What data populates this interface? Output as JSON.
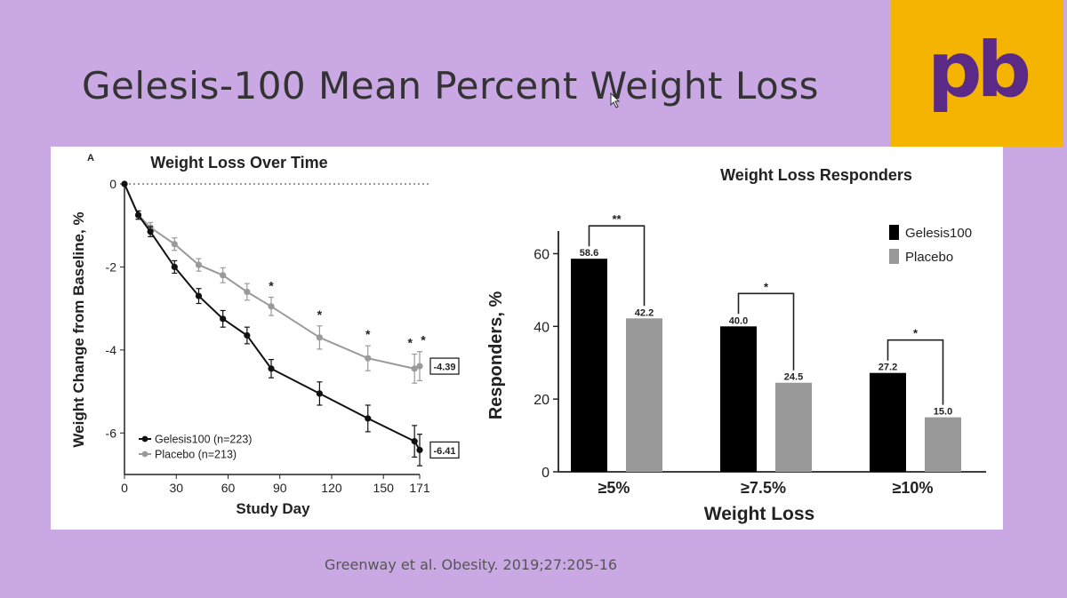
{
  "slide": {
    "title": "Gelesis-100 Mean Percent Weight Loss",
    "citation": "Greenway et al.  Obesity.  2019;27:205-16",
    "logo_text": "pb",
    "logo_bg": "#f5b400",
    "logo_color": "#5b2a86",
    "background": "#c9a8e3"
  },
  "chart_data": [
    {
      "type": "line",
      "panel_label": "A",
      "title": "Weight Loss Over Time",
      "xlabel": "Study Day",
      "ylabel": "Weight Change from Baseline, %",
      "x_ticks": [
        0,
        30,
        60,
        90,
        120,
        150,
        171
      ],
      "y_ticks": [
        0,
        -2,
        -4,
        -6
      ],
      "xlim": [
        0,
        171
      ],
      "ylim": [
        -7,
        0
      ],
      "baseline_dotted": true,
      "series": [
        {
          "name": "Gelesis100",
          "legend": "Gelesis100 (n=223)",
          "color": "#111111",
          "x": [
            0,
            8,
            15,
            29,
            43,
            57,
            71,
            85,
            113,
            141,
            168,
            171
          ],
          "y": [
            0,
            -0.75,
            -1.15,
            -2.0,
            -2.7,
            -3.25,
            -3.65,
            -4.45,
            -5.05,
            -5.65,
            -6.2,
            -6.41
          ],
          "err": [
            0,
            0.1,
            0.12,
            0.15,
            0.18,
            0.2,
            0.2,
            0.22,
            0.28,
            0.32,
            0.38,
            0.38
          ],
          "end_label": "-6.41"
        },
        {
          "name": "Placebo",
          "legend": "Placebo (n=213)",
          "color": "#9a9a9a",
          "x": [
            0,
            8,
            15,
            29,
            43,
            57,
            71,
            85,
            113,
            141,
            168,
            171
          ],
          "y": [
            0,
            -0.75,
            -1.05,
            -1.45,
            -1.95,
            -2.2,
            -2.6,
            -2.95,
            -3.7,
            -4.2,
            -4.45,
            -4.39
          ],
          "err": [
            0,
            0.1,
            0.12,
            0.15,
            0.15,
            0.18,
            0.2,
            0.22,
            0.28,
            0.3,
            0.35,
            0.35
          ],
          "end_label": "-4.39"
        }
      ],
      "significance": [
        {
          "x": 85,
          "label": "*"
        },
        {
          "x": 113,
          "label": "*"
        },
        {
          "x": 141,
          "label": "*"
        },
        {
          "x": 168,
          "label": "*"
        },
        {
          "x": 171,
          "label": "*"
        }
      ]
    },
    {
      "type": "bar",
      "title": "Weight Loss Responders",
      "xlabel": "Weight Loss",
      "ylabel": "Responders, %",
      "categories": [
        "≥5%",
        "≥7.5%",
        "≥10%"
      ],
      "y_ticks": [
        0,
        20,
        40,
        60
      ],
      "ylim": [
        0,
        65
      ],
      "legend_position": "top-right",
      "series": [
        {
          "name": "Gelesis100",
          "color": "#000000",
          "values": [
            58.6,
            40.0,
            27.2
          ],
          "labels": [
            "58.6",
            "40.0",
            "27.2"
          ]
        },
        {
          "name": "Placebo",
          "color": "#999999",
          "values": [
            42.2,
            24.5,
            15.0
          ],
          "labels": [
            "42.2",
            "24.5",
            "15.0"
          ]
        }
      ],
      "significance": [
        "**",
        "*",
        "*"
      ]
    }
  ]
}
